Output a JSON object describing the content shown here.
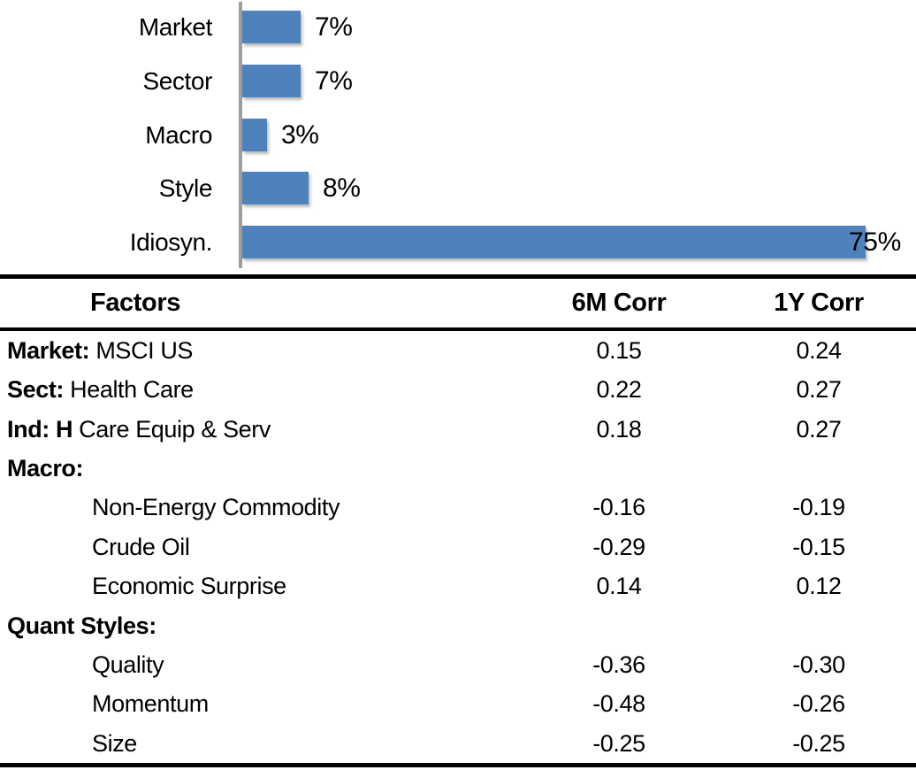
{
  "chart_data": {
    "type": "bar",
    "orientation": "horizontal",
    "title": "",
    "xlabel": "",
    "ylabel": "",
    "categories": [
      "Market",
      "Sector",
      "Macro",
      "Style",
      "Idiosyn."
    ],
    "values": [
      7,
      7,
      3,
      8,
      75
    ],
    "value_labels": [
      "7%",
      "7%",
      "3%",
      "8%",
      "75%"
    ],
    "xlim": [
      0,
      80
    ],
    "grid": false,
    "legend": "none",
    "bar_color": "#4f81bd",
    "axis_line_color": "#9e9e9e"
  },
  "table": {
    "header": {
      "factors": "Factors",
      "corr6m": "6M Corr",
      "corr1y": "1Y Corr"
    },
    "rows": [
      {
        "bold": "Market:",
        "rest": " MSCI US",
        "indent": false,
        "c6m": "0.15",
        "c1y": "0.24"
      },
      {
        "bold": "Sect:",
        "rest": " Health Care",
        "indent": false,
        "c6m": "0.22",
        "c1y": "0.27"
      },
      {
        "bold": "Ind: H",
        "rest": " Care Equip & Serv",
        "indent": false,
        "c6m": "0.18",
        "c1y": "0.27"
      },
      {
        "bold": "Macro:",
        "rest": "",
        "indent": false,
        "c6m": "",
        "c1y": ""
      },
      {
        "bold": "",
        "rest": "Non-Energy Commodity",
        "indent": true,
        "c6m": "-0.16",
        "c1y": "-0.19"
      },
      {
        "bold": "",
        "rest": "Crude Oil",
        "indent": true,
        "c6m": "-0.29",
        "c1y": "-0.15"
      },
      {
        "bold": "",
        "rest": "Economic Surprise",
        "indent": true,
        "c6m": "0.14",
        "c1y": "0.12"
      },
      {
        "bold": "Quant Styles:",
        "rest": "",
        "indent": false,
        "c6m": "",
        "c1y": ""
      },
      {
        "bold": "",
        "rest": "Quality",
        "indent": true,
        "c6m": "-0.36",
        "c1y": "-0.30"
      },
      {
        "bold": "",
        "rest": "Momentum",
        "indent": true,
        "c6m": "-0.48",
        "c1y": "-0.26"
      },
      {
        "bold": "",
        "rest": "Size",
        "indent": true,
        "c6m": "-0.25",
        "c1y": "-0.25"
      }
    ]
  }
}
